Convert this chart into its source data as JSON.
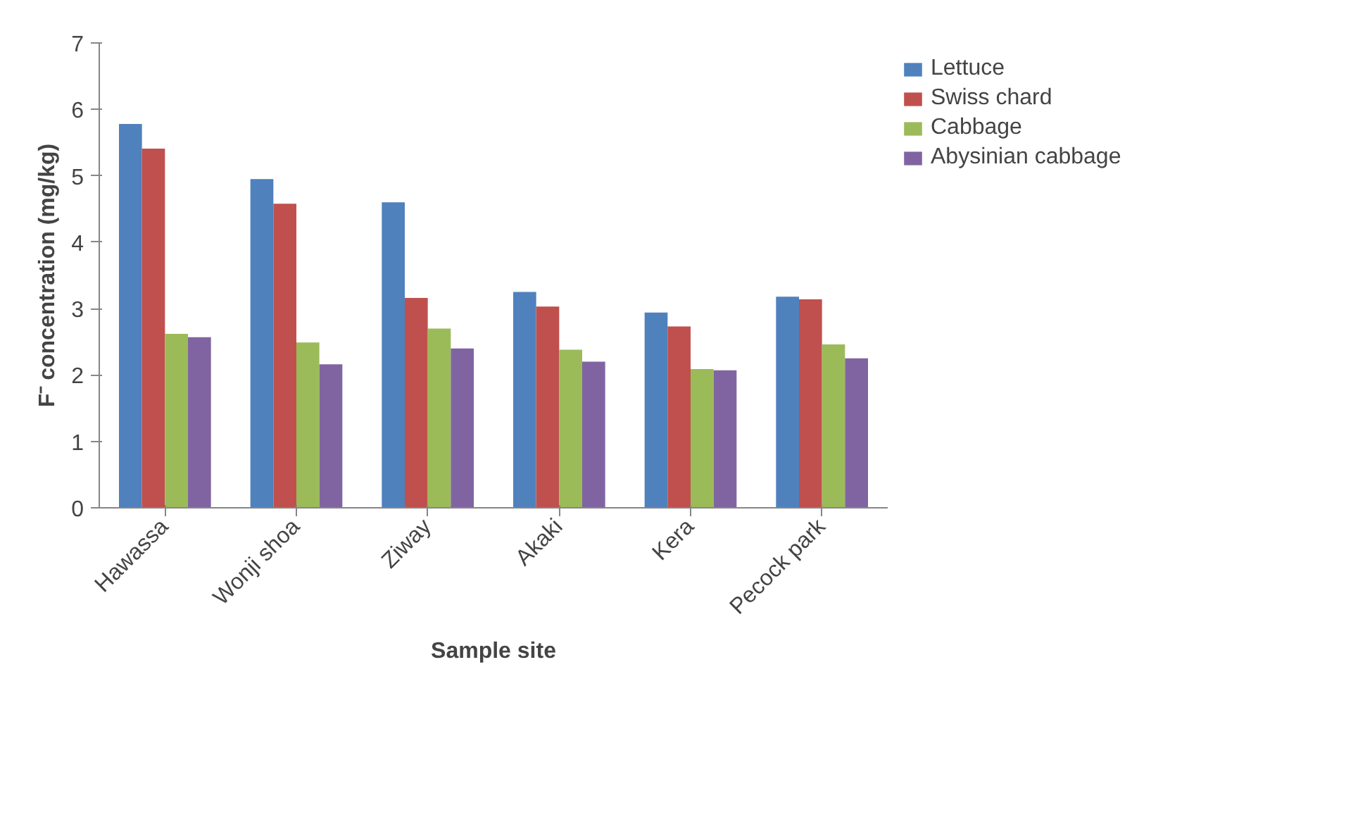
{
  "chart_data": {
    "type": "bar",
    "xlabel": "Sample site",
    "ylabel": "F⁻ concentration (mg/kg)",
    "categories": [
      "Hawassa",
      "Wonji shoa",
      "Ziway",
      "Akaki",
      "Kera",
      "Pecock park"
    ],
    "series": [
      {
        "name": "Lettuce",
        "color": "#4f81bd",
        "values": [
          5.78,
          4.95,
          4.6,
          3.25,
          2.94,
          3.18
        ]
      },
      {
        "name": "Swiss chard",
        "color": "#c0504d",
        "values": [
          5.41,
          4.58,
          3.16,
          3.03,
          2.73,
          3.14
        ]
      },
      {
        "name": "Cabbage",
        "color": "#9bbb59",
        "values": [
          2.62,
          2.49,
          2.7,
          2.38,
          2.09,
          2.46
        ]
      },
      {
        "name": "Abysinian cabbage",
        "color": "#8064a2",
        "values": [
          2.57,
          2.16,
          2.4,
          2.2,
          2.07,
          2.25
        ]
      }
    ],
    "ylim": [
      0,
      7
    ],
    "yticks": [
      0,
      1,
      2,
      3,
      4,
      5,
      6,
      7
    ],
    "grid": false,
    "legend": "right"
  }
}
